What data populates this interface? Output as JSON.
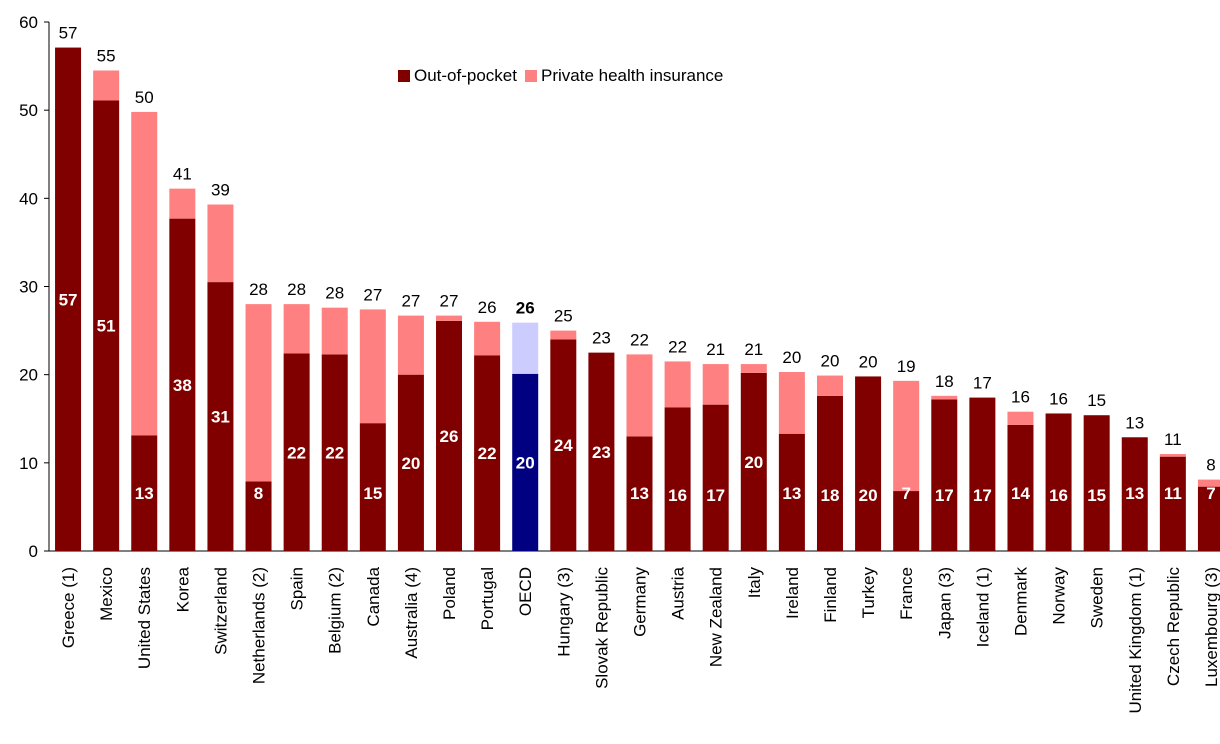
{
  "chart_data": {
    "type": "bar",
    "stacked": true,
    "ylim": [
      0,
      60
    ],
    "yticks": [
      0,
      10,
      20,
      30,
      40,
      50,
      60
    ],
    "grid": false,
    "legend_position": "top-center",
    "categories": [
      "Greece (1)",
      "Mexico",
      "United States",
      "Korea",
      "Switzerland",
      "Netherlands (2)",
      "Spain",
      "Belgium (2)",
      "Canada",
      "Australia (4)",
      "Poland",
      "Portugal",
      "OECD",
      "Hungary (3)",
      "Slovak Republic",
      "Germany",
      "Austria",
      "New Zealand",
      "Italy",
      "Ireland",
      "Finland",
      "Turkey",
      "France",
      "Japan (3)",
      "Iceland (1)",
      "Denmark",
      "Norway",
      "Sweden",
      "United Kingdom (1)",
      "Czech Republic",
      "Luxembourg (3)"
    ],
    "series": [
      {
        "name": "Out-of-pocket",
        "color": "#800000",
        "values": [
          57.1,
          51.1,
          13.1,
          37.7,
          30.5,
          7.9,
          22.4,
          22.3,
          14.5,
          20.0,
          26.1,
          22.2,
          20.1,
          24.0,
          22.5,
          13.0,
          16.3,
          16.6,
          20.2,
          13.3,
          17.6,
          19.8,
          6.8,
          17.2,
          17.4,
          14.3,
          15.6,
          15.4,
          12.9,
          10.7,
          7.3
        ]
      },
      {
        "name": "Private health insurance",
        "color": "#ff8080",
        "values": [
          0.0,
          3.4,
          36.7,
          3.4,
          8.8,
          20.1,
          5.6,
          5.3,
          12.9,
          6.7,
          0.6,
          3.8,
          5.8,
          1.0,
          0.0,
          9.3,
          5.2,
          4.6,
          1.0,
          7.0,
          2.3,
          0.0,
          12.5,
          0.4,
          0.0,
          1.5,
          0.0,
          0.0,
          0.0,
          0.3,
          0.8
        ]
      }
    ],
    "inner_labels": [
      "57",
      "51",
      "13",
      "38",
      "31",
      "8",
      "22",
      "22",
      "15",
      "20",
      "26",
      "22",
      "20",
      "24",
      "23",
      "13",
      "16",
      "17",
      "20",
      "13",
      "18",
      "20",
      "7",
      "17",
      "17",
      "14",
      "16",
      "15",
      "13",
      "11",
      "7"
    ],
    "total_labels": [
      "57",
      "55",
      "50",
      "41",
      "39",
      "28",
      "28",
      "28",
      "27",
      "27",
      "27",
      "26",
      "26",
      "25",
      "23",
      "22",
      "22",
      "21",
      "21",
      "20",
      "20",
      "20",
      "19",
      "18",
      "17",
      "16",
      "16",
      "15",
      "13",
      "11",
      "8"
    ],
    "highlight": {
      "category": "OECD",
      "colors": {
        "Out-of-pocket": "#000080",
        "Private health insurance": "#ccccff"
      }
    }
  }
}
